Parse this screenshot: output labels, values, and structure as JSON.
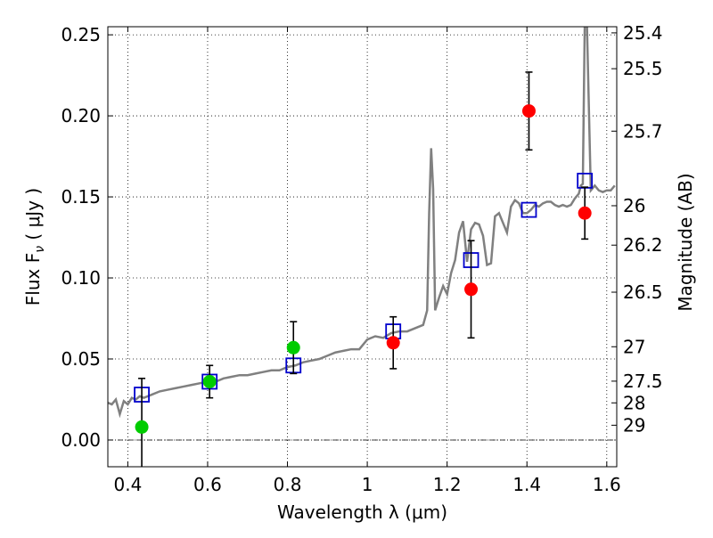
{
  "chart_data": {
    "type": "scatter",
    "xlabel": "Wavelength  λ (μm)",
    "ylabel_left": "Flux  F",
    "ylabel_left_sub": "ν",
    "ylabel_left_unit": " ( μJy )",
    "ylabel_right": "Magnitude (AB)",
    "xlim": [
      0.35,
      1.625
    ],
    "ylim": [
      -0.0165,
      0.255
    ],
    "grid": true,
    "x_ticks": [
      0.4,
      0.6,
      0.8,
      1.0,
      1.2,
      1.4,
      1.6
    ],
    "x_tick_labels": [
      "0.4",
      "0.6",
      "0.8",
      "1",
      "1.2",
      "1.4",
      "1.6"
    ],
    "y_ticks": [
      0.0,
      0.05,
      0.1,
      0.15,
      0.2,
      0.25
    ],
    "y_tick_labels": [
      "0.00",
      "0.05",
      "0.10",
      "0.15",
      "0.20",
      "0.25"
    ],
    "mag_ticks": [
      25.4,
      25.5,
      25.7,
      26,
      26.2,
      26.5,
      27,
      27.5,
      28,
      29
    ],
    "mag_tick_labels": [
      "25.4",
      "25.5",
      "25.7",
      "26",
      "26.2",
      "26.5",
      "27",
      "27.5",
      "28",
      "29"
    ],
    "mag_zero_point_ujy": 3631000000.0,
    "series": [
      {
        "style": "line",
        "color": "#808080",
        "x": [
          0.35,
          0.36,
          0.37,
          0.38,
          0.39,
          0.4,
          0.41,
          0.42,
          0.43,
          0.44,
          0.46,
          0.48,
          0.5,
          0.52,
          0.54,
          0.56,
          0.58,
          0.6,
          0.62,
          0.64,
          0.66,
          0.68,
          0.7,
          0.72,
          0.74,
          0.76,
          0.78,
          0.8,
          0.82,
          0.84,
          0.86,
          0.88,
          0.9,
          0.92,
          0.94,
          0.96,
          0.98,
          1.0,
          1.02,
          1.04,
          1.06,
          1.08,
          1.1,
          1.12,
          1.14,
          1.15,
          1.155,
          1.16,
          1.165,
          1.17,
          1.18,
          1.19,
          1.2,
          1.21,
          1.22,
          1.23,
          1.24,
          1.25,
          1.26,
          1.27,
          1.28,
          1.29,
          1.3,
          1.31,
          1.32,
          1.33,
          1.34,
          1.35,
          1.36,
          1.37,
          1.38,
          1.39,
          1.4,
          1.41,
          1.42,
          1.43,
          1.44,
          1.45,
          1.46,
          1.47,
          1.48,
          1.49,
          1.5,
          1.51,
          1.52,
          1.53,
          1.535,
          1.54,
          1.545,
          1.55,
          1.56,
          1.57,
          1.58,
          1.59,
          1.6,
          1.61,
          1.62
        ],
        "y": [
          0.023,
          0.022,
          0.025,
          0.016,
          0.024,
          0.022,
          0.026,
          0.025,
          0.027,
          0.026,
          0.028,
          0.03,
          0.031,
          0.032,
          0.033,
          0.034,
          0.035,
          0.036,
          0.036,
          0.038,
          0.039,
          0.04,
          0.04,
          0.041,
          0.042,
          0.043,
          0.043,
          0.045,
          0.046,
          0.048,
          0.049,
          0.05,
          0.052,
          0.054,
          0.055,
          0.056,
          0.056,
          0.062,
          0.064,
          0.063,
          0.066,
          0.067,
          0.067,
          0.069,
          0.071,
          0.08,
          0.14,
          0.18,
          0.155,
          0.08,
          0.088,
          0.095,
          0.09,
          0.103,
          0.111,
          0.128,
          0.135,
          0.11,
          0.13,
          0.134,
          0.133,
          0.126,
          0.108,
          0.109,
          0.138,
          0.14,
          0.134,
          0.128,
          0.144,
          0.148,
          0.146,
          0.14,
          0.14,
          0.142,
          0.145,
          0.144,
          0.146,
          0.147,
          0.147,
          0.145,
          0.144,
          0.145,
          0.144,
          0.145,
          0.149,
          0.152,
          0.157,
          0.158,
          0.26,
          0.26,
          0.154,
          0.157,
          0.154,
          0.153,
          0.154,
          0.154,
          0.157
        ]
      },
      {
        "style": "open-square",
        "color": "#0000cc",
        "x": [
          0.435,
          0.605,
          0.815,
          1.065,
          1.26,
          1.405,
          1.545
        ],
        "y": [
          0.028,
          0.036,
          0.046,
          0.067,
          0.111,
          0.142,
          0.16
        ]
      },
      {
        "style": "filled-circle",
        "color": "#00cc00",
        "x": [
          0.435,
          0.605,
          0.815
        ],
        "y": [
          0.008,
          0.036,
          0.057
        ],
        "err": [
          0.03,
          0.01,
          0.016
        ]
      },
      {
        "style": "filled-circle",
        "color": "#ff0000",
        "x": [
          1.065,
          1.26,
          1.405,
          1.545
        ],
        "y": [
          0.06,
          0.093,
          0.203,
          0.14
        ],
        "err": [
          0.016,
          0.03,
          0.024,
          0.016
        ]
      }
    ],
    "zero_line": 0.0
  }
}
